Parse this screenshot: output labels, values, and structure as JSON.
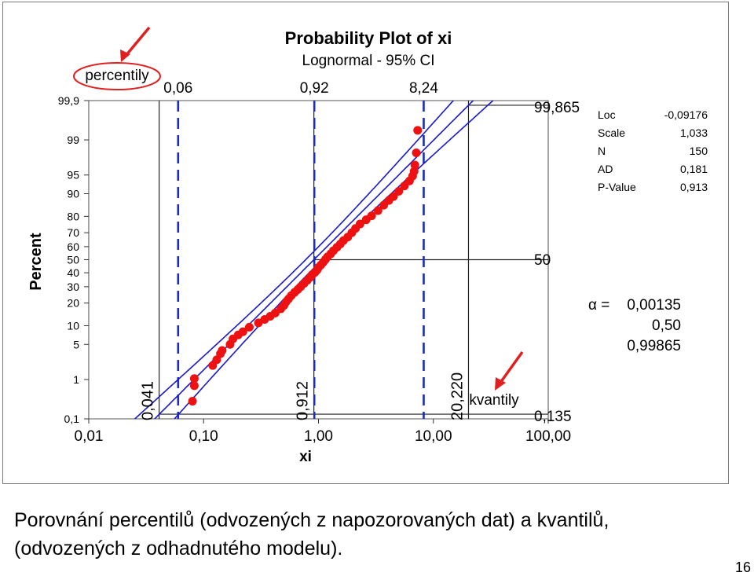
{
  "chart_data": {
    "type": "scatter",
    "title": "Probability Plot of xi",
    "subtitle": "Lognormal - 95% CI",
    "xlabel": "xi",
    "ylabel": "Percent",
    "x_scale": "log",
    "y_scale": "normal-probability",
    "xlim": [
      0.01,
      100
    ],
    "ylim": [
      0.1,
      99.9
    ],
    "x_ticks": [
      0.01,
      0.1,
      1,
      10,
      100
    ],
    "x_tick_labels": [
      "0,01",
      "0,10",
      "1,00",
      "10,00",
      "100,00"
    ],
    "y_ticks": [
      0.1,
      1,
      5,
      10,
      20,
      30,
      40,
      50,
      60,
      70,
      80,
      90,
      95,
      99,
      99.9
    ],
    "y_tick_labels": [
      "0,1",
      "1",
      "5",
      "10",
      "20",
      "30",
      "40",
      "50",
      "60",
      "70",
      "80",
      "90",
      "95",
      "99",
      "99,9"
    ],
    "grid": true,
    "fit": {
      "loc": -0.09176,
      "scale": 1.033
    },
    "stats_legend": {
      "labels": [
        "Loc",
        "Scale",
        "N",
        "AD",
        "P-Value"
      ],
      "values": [
        "-0,09176",
        "1,033",
        "150",
        "0,181",
        "0,913"
      ]
    },
    "percentile_lines": [
      {
        "x": 0.06,
        "label": "0,06"
      },
      {
        "x": 0.92,
        "label": "0,92"
      },
      {
        "x": 8.24,
        "label": "8,24"
      }
    ],
    "quantile_lines": [
      {
        "x": 0.041,
        "p": 0.135,
        "label": "0,041"
      },
      {
        "x": 0.912,
        "p": 50,
        "label": "0,912"
      },
      {
        "x": 20.22,
        "p": 99.865,
        "label": "20,220"
      }
    ],
    "right_labels": [
      "99,865",
      "50",
      "0,135"
    ],
    "annotations": {
      "percentily": "percentily",
      "kvantily": "kvantily",
      "alpha_symbol": "α =",
      "alpha_values": [
        "0,00135",
        "0,50",
        "0,99865"
      ]
    },
    "series": [
      {
        "x": [
          0.08,
          0.083,
          0.083,
          0.12,
          0.13,
          0.14,
          0.145,
          0.17,
          0.18,
          0.2,
          0.22,
          0.25,
          0.3,
          0.34,
          0.38,
          0.42,
          0.47,
          0.5,
          0.52,
          0.55,
          0.58,
          0.62,
          0.66,
          0.7,
          0.75,
          0.8,
          0.85,
          0.88,
          0.93,
          0.97,
          1.0,
          1.05,
          1.1,
          1.15,
          1.2,
          1.28,
          1.35,
          1.45,
          1.55,
          1.65,
          1.8,
          1.95,
          2.1,
          2.3,
          2.6,
          2.9,
          3.3,
          3.7,
          4.1,
          4.5,
          5.0,
          5.6,
          6.2,
          6.6,
          6.8,
          6.9,
          7.1,
          7.3
        ],
        "y": [
          0.3,
          0.72,
          1.05,
          2.0,
          2.6,
          3.4,
          3.9,
          5.0,
          6.2,
          7.2,
          8.1,
          9.5,
          11.0,
          12.3,
          13.6,
          15.0,
          17.0,
          18.7,
          20.5,
          22.4,
          24.3,
          26.3,
          28.1,
          30.0,
          32.3,
          34.5,
          36.7,
          38.5,
          40.2,
          42.0,
          44.0,
          46.0,
          48.0,
          50.2,
          52.3,
          54.6,
          57.0,
          59.6,
          62.0,
          64.5,
          67.0,
          70.0,
          72.8,
          75.6,
          78.1,
          80.3,
          83.0,
          85.5,
          87.5,
          89.0,
          90.8,
          92.4,
          93.7,
          94.8,
          95.7,
          96.7,
          98.1,
          99.4
        ]
      }
    ]
  },
  "caption": {
    "line1": "Porovnání percentilů (odvozených z napozorovaných dat) a kvantilů,",
    "line2": "(odvozených z odhadnutého modelu)."
  },
  "page_number": "16",
  "colors": {
    "points": "#ee1111",
    "fit_lines": "#1a1acc",
    "ref_dashed": "#1a2dbb",
    "arrow": "#e02020",
    "ellipse": "#e02020",
    "grid": "#d9d9d9"
  }
}
